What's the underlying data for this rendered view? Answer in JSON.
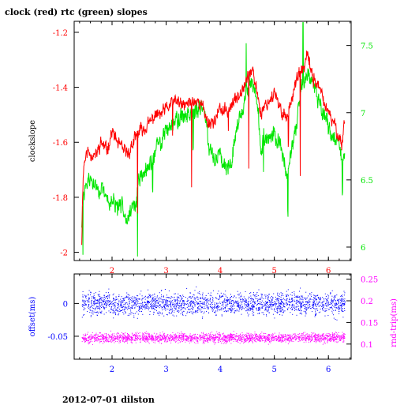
{
  "title": "clock (red) rtc (green) slopes",
  "footer": "2012-07-01 dilston",
  "colors": {
    "clock": "#ff0000",
    "rtc": "#00e600",
    "offset": "#0000ff",
    "rtt": "#ff00ff",
    "axis": "#000000"
  },
  "chart_data": [
    {
      "type": "line",
      "xlim": [
        1.3,
        6.42
      ],
      "x_ticks": [
        "2",
        "3",
        "4",
        "5",
        "6"
      ],
      "grid": false,
      "left_axis": {
        "label": "clockslope",
        "ylim": [
          -2.03,
          -1.16
        ],
        "ticks": [
          "-1.2",
          "-1.4",
          "-1.6",
          "-1.8",
          "-2"
        ],
        "color": "#ff0000"
      },
      "right_axis": {
        "label": "",
        "ylim": [
          5.9,
          7.68
        ],
        "ticks": [
          "7.5",
          "7",
          "6.5",
          "6"
        ],
        "color": "#00e600"
      },
      "series": [
        {
          "name": "clock",
          "axis": "left",
          "color": "#ff0000",
          "x": [
            1.44,
            1.46,
            1.48,
            1.5,
            1.55,
            1.6,
            1.7,
            1.8,
            1.9,
            2.0,
            2.1,
            2.2,
            2.3,
            2.35,
            2.4,
            2.45,
            2.5,
            2.6,
            2.7,
            2.8,
            2.9,
            3.0,
            3.1,
            3.2,
            3.3,
            3.4,
            3.5,
            3.6,
            3.7,
            3.75,
            3.8,
            3.9,
            4.0,
            4.1,
            4.2,
            4.3,
            4.4,
            4.5,
            4.55,
            4.6,
            4.7,
            4.75,
            4.8,
            4.9,
            5.0,
            5.1,
            5.2,
            5.25,
            5.3,
            5.4,
            5.5,
            5.55,
            5.6,
            5.65,
            5.7,
            5.8,
            5.9,
            6.0,
            6.1,
            6.2,
            6.25,
            6.3
          ],
          "y": [
            -1.96,
            -1.75,
            -1.68,
            -1.66,
            -1.63,
            -1.64,
            -1.65,
            -1.6,
            -1.63,
            -1.56,
            -1.6,
            -1.63,
            -1.64,
            -1.62,
            -1.6,
            -1.58,
            -1.56,
            -1.55,
            -1.53,
            -1.5,
            -1.5,
            -1.48,
            -1.46,
            -1.45,
            -1.47,
            -1.46,
            -1.45,
            -1.45,
            -1.48,
            -1.52,
            -1.53,
            -1.52,
            -1.48,
            -1.49,
            -1.47,
            -1.44,
            -1.4,
            -1.37,
            -1.34,
            -1.35,
            -1.43,
            -1.5,
            -1.47,
            -1.45,
            -1.42,
            -1.48,
            -1.5,
            -1.51,
            -1.45,
            -1.38,
            -1.34,
            -1.33,
            -1.29,
            -1.31,
            -1.36,
            -1.39,
            -1.44,
            -1.5,
            -1.53,
            -1.58,
            -1.61,
            -1.51
          ]
        },
        {
          "name": "rtc",
          "axis": "right",
          "color": "#00e600",
          "x": [
            1.44,
            1.46,
            1.5,
            1.6,
            1.7,
            1.8,
            1.9,
            2.0,
            2.1,
            2.2,
            2.3,
            2.4,
            2.45,
            2.5,
            2.6,
            2.7,
            2.8,
            2.9,
            3.0,
            3.1,
            3.2,
            3.3,
            3.4,
            3.5,
            3.6,
            3.7,
            3.75,
            3.8,
            3.9,
            4.0,
            4.1,
            4.2,
            4.3,
            4.4,
            4.5,
            4.55,
            4.6,
            4.7,
            4.75,
            4.8,
            4.9,
            5.0,
            5.1,
            5.2,
            5.25,
            5.3,
            5.4,
            5.5,
            5.55,
            5.6,
            5.65,
            5.7,
            5.8,
            5.9,
            6.0,
            6.1,
            6.2,
            6.25,
            6.3
          ],
          "y": [
            6.15,
            6.3,
            6.45,
            6.5,
            6.45,
            6.42,
            6.35,
            6.35,
            6.28,
            6.3,
            6.23,
            6.3,
            6.35,
            6.5,
            6.55,
            6.6,
            6.72,
            6.78,
            6.87,
            6.93,
            6.95,
            6.97,
            7.0,
            7.02,
            7.0,
            7.05,
            6.9,
            6.75,
            6.65,
            6.7,
            6.6,
            6.65,
            6.88,
            7.02,
            7.15,
            7.2,
            7.22,
            7.05,
            6.7,
            6.8,
            6.8,
            6.83,
            6.78,
            6.6,
            6.55,
            6.68,
            6.85,
            7.2,
            7.25,
            7.3,
            7.28,
            7.25,
            7.12,
            7.02,
            6.88,
            6.82,
            6.78,
            6.62,
            6.7
          ]
        }
      ]
    },
    {
      "type": "scatter",
      "xlim": [
        1.3,
        6.42
      ],
      "x_ticks": [
        "2",
        "3",
        "4",
        "5",
        "6"
      ],
      "grid": false,
      "left_axis": {
        "label": "offset(ms)",
        "ylim": [
          -0.085,
          0.045
        ],
        "ticks": [
          "0",
          "-0.05"
        ],
        "color": "#0000ff"
      },
      "right_axis": {
        "label": "rnd-trip(ms)",
        "ylim": [
          0.065,
          0.262
        ],
        "ticks": [
          "0.25",
          "0.2",
          "0.15",
          "0.1"
        ],
        "color": "#ff00ff"
      },
      "series": [
        {
          "name": "offset",
          "axis": "left",
          "color": "#0000ff",
          "x_range": [
            1.44,
            6.3
          ],
          "center": 0.0,
          "spread": 0.012
        },
        {
          "name": "rnd-trip",
          "axis": "right",
          "color": "#ff00ff",
          "x_range": [
            1.44,
            6.3
          ],
          "center": 0.115,
          "spread": 0.008
        }
      ]
    }
  ]
}
